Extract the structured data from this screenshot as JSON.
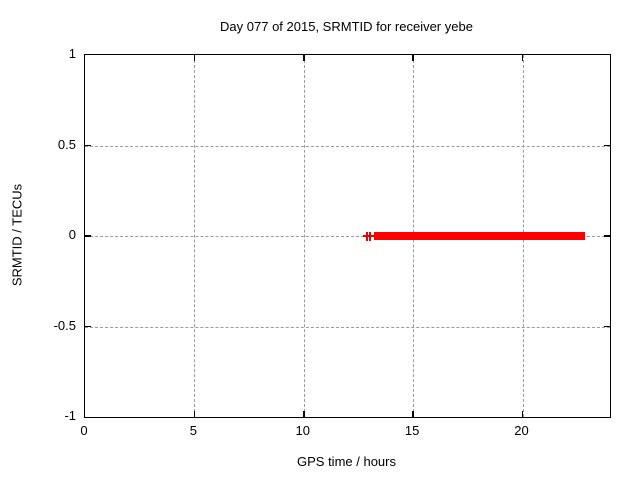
{
  "window": {
    "background": "#ffffff"
  },
  "chart_data": {
    "type": "scatter",
    "title": "Day 077 of 2015, SRMTID for receiver yebe",
    "xlabel": "GPS time / hours",
    "ylabel": "SRMTID / TECUs",
    "xlim": [
      0,
      24
    ],
    "ylim": [
      -1,
      1
    ],
    "xticks": [
      0,
      5,
      10,
      15,
      20
    ],
    "yticks": [
      1,
      0.5,
      0,
      -0.5,
      -1
    ],
    "grid": true,
    "legend": "none",
    "marker": "+",
    "series": [
      {
        "name": "SRMTID",
        "color": "#ff0000",
        "description": "Dense band of overlapping '+' markers at SRMTID near 0 TECUs, spanning GPS time from about 13.2 h to 22.9 h, with sparse leading '+' markers near 12.9-13.1 h",
        "band": {
          "x_start": 13.2,
          "x_end": 22.87,
          "y": 0.0,
          "y_spread": 0.02
        },
        "lead_points": [
          [
            12.9,
            0.0
          ],
          [
            13.05,
            0.0
          ]
        ]
      }
    ],
    "colors": {
      "series": "#ff0000",
      "grid": "#9b9b9b",
      "axis": "#000000",
      "text": "#000000",
      "background": "#ffffff"
    }
  }
}
